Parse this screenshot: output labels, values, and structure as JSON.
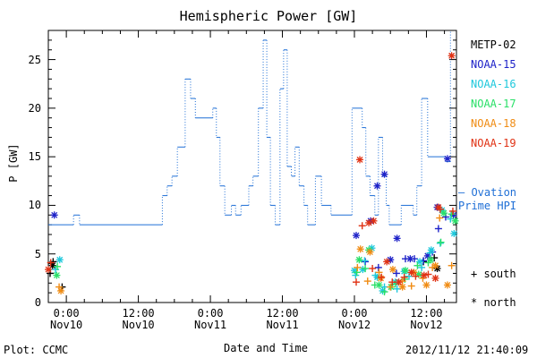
{
  "chart_data": {
    "type": "scatter",
    "title": "Hemispheric Power [GW]",
    "ylabel": "P [GW]",
    "xlabel": "Date and Time",
    "ylim": [
      0,
      28
    ],
    "xlim_hours": [
      -3,
      65
    ],
    "grid": false,
    "yticks": [
      0,
      5,
      10,
      15,
      20,
      25
    ],
    "xticks": [
      {
        "top": "0:00",
        "bottom": "Nov10",
        "h": 0
      },
      {
        "top": "12:00",
        "bottom": "Nov10",
        "h": 12
      },
      {
        "top": "0:00",
        "bottom": "Nov11",
        "h": 24
      },
      {
        "top": "12:00",
        "bottom": "Nov11",
        "h": 36
      },
      {
        "top": "0:00",
        "bottom": "Nov12",
        "h": 48
      },
      {
        "top": "12:00",
        "bottom": "Nov12",
        "h": 60
      }
    ],
    "ovation": {
      "name": "— Ovation Prime HPI",
      "color": "#1f6fd6",
      "points": [
        [
          -3,
          8
        ],
        [
          1.2,
          8
        ],
        [
          1.2,
          9
        ],
        [
          2.2,
          9
        ],
        [
          2.2,
          8
        ],
        [
          16,
          8
        ],
        [
          16,
          11
        ],
        [
          16.8,
          11
        ],
        [
          16.8,
          12
        ],
        [
          17.6,
          12
        ],
        [
          17.6,
          13
        ],
        [
          18.5,
          13
        ],
        [
          18.5,
          16
        ],
        [
          19.8,
          16
        ],
        [
          19.8,
          23
        ],
        [
          20.7,
          23
        ],
        [
          20.7,
          21
        ],
        [
          21.5,
          21
        ],
        [
          21.5,
          19
        ],
        [
          24.4,
          19
        ],
        [
          24.4,
          20
        ],
        [
          25,
          20
        ],
        [
          25,
          17
        ],
        [
          25.6,
          17
        ],
        [
          25.6,
          12
        ],
        [
          26.4,
          12
        ],
        [
          26.4,
          9
        ],
        [
          27.5,
          9
        ],
        [
          27.5,
          10
        ],
        [
          28.2,
          10
        ],
        [
          28.2,
          9
        ],
        [
          29.1,
          9
        ],
        [
          29.1,
          10
        ],
        [
          30.4,
          10
        ],
        [
          30.4,
          12
        ],
        [
          31.1,
          12
        ],
        [
          31.1,
          13
        ],
        [
          32,
          13
        ],
        [
          32,
          20
        ],
        [
          32.8,
          20
        ],
        [
          32.8,
          27
        ],
        [
          33.4,
          27
        ],
        [
          33.4,
          17
        ],
        [
          34,
          17
        ],
        [
          34,
          10
        ],
        [
          34.8,
          10
        ],
        [
          34.8,
          8
        ],
        [
          35.6,
          8
        ],
        [
          35.6,
          22
        ],
        [
          36.2,
          22
        ],
        [
          36.2,
          26
        ],
        [
          36.8,
          26
        ],
        [
          36.8,
          14
        ],
        [
          37.5,
          14
        ],
        [
          37.5,
          13
        ],
        [
          38.1,
          13
        ],
        [
          38.1,
          16
        ],
        [
          38.8,
          16
        ],
        [
          38.8,
          12
        ],
        [
          39.6,
          12
        ],
        [
          39.6,
          10
        ],
        [
          40.2,
          10
        ],
        [
          40.2,
          8
        ],
        [
          41.5,
          8
        ],
        [
          41.5,
          13
        ],
        [
          42.5,
          13
        ],
        [
          42.5,
          10
        ],
        [
          44.1,
          10
        ],
        [
          44.1,
          9
        ],
        [
          47.6,
          9
        ],
        [
          47.6,
          20
        ],
        [
          49.3,
          20
        ],
        [
          49.3,
          18
        ],
        [
          49.9,
          18
        ],
        [
          49.9,
          13
        ],
        [
          50.6,
          13
        ],
        [
          50.6,
          11
        ],
        [
          51.4,
          11
        ],
        [
          51.4,
          9
        ],
        [
          52,
          9
        ],
        [
          52,
          17
        ],
        [
          52.7,
          17
        ],
        [
          52.7,
          13
        ],
        [
          53.3,
          13
        ],
        [
          53.3,
          10
        ],
        [
          53.8,
          10
        ],
        [
          53.8,
          8
        ],
        [
          55.8,
          8
        ],
        [
          55.8,
          10
        ],
        [
          57.8,
          10
        ],
        [
          57.8,
          9
        ],
        [
          58.4,
          9
        ],
        [
          58.4,
          12
        ],
        [
          59.2,
          12
        ],
        [
          59.2,
          21
        ],
        [
          60.2,
          21
        ],
        [
          60.2,
          15
        ],
        [
          63.2,
          15
        ],
        [
          63.2,
          14.5
        ],
        [
          64,
          14.5
        ],
        [
          64,
          28
        ]
      ]
    },
    "series": [
      {
        "name": "METP-02",
        "color": "#000000",
        "south": [
          [
            -2.7,
            3
          ],
          [
            -2.2,
            4.2
          ],
          [
            -0.7,
            1.6
          ],
          [
            59.5,
            4.2
          ],
          [
            61.3,
            4.6
          ]
        ],
        "north": [
          [
            -2.3,
            3.8
          ],
          [
            61.8,
            3.5
          ]
        ]
      },
      {
        "name": "NOAA-15",
        "color": "#1e22c8",
        "south": [
          [
            49.8,
            4.2
          ],
          [
            52,
            3.6
          ],
          [
            55,
            3
          ],
          [
            56.5,
            4.5
          ],
          [
            58,
            4.5
          ],
          [
            59.5,
            4.3
          ],
          [
            61,
            5.2
          ],
          [
            62,
            7.6
          ],
          [
            63.2,
            8.8
          ]
        ],
        "north": [
          [
            -2,
            9
          ],
          [
            48.3,
            6.9
          ],
          [
            50.7,
            8.4
          ],
          [
            51.8,
            12
          ],
          [
            53,
            13.2
          ],
          [
            54,
            4.4
          ],
          [
            55.1,
            6.6
          ],
          [
            57.3,
            4.5
          ],
          [
            60.2,
            4.8
          ],
          [
            61.8,
            9.8
          ],
          [
            63.5,
            14.8
          ],
          [
            64.5,
            9
          ]
        ]
      },
      {
        "name": "NOAA-16",
        "color": "#1ec8dc",
        "south": [
          [
            -1.8,
            3.4
          ],
          [
            48.2,
            2.8
          ],
          [
            49.7,
            4.3
          ],
          [
            51.5,
            2.8
          ],
          [
            53,
            1.6
          ],
          [
            55.1,
            1.4
          ],
          [
            57.1,
            2.7
          ],
          [
            59.2,
            3.6
          ],
          [
            60.6,
            5.1
          ],
          [
            62.3,
            6.1
          ],
          [
            64,
            8.6
          ]
        ],
        "north": [
          [
            -1.1,
            4.4
          ],
          [
            48,
            3.3
          ],
          [
            49.4,
            3.4
          ],
          [
            50.9,
            5.6
          ],
          [
            51.8,
            2.6
          ],
          [
            52.7,
            1.2
          ],
          [
            54.8,
            2.1
          ],
          [
            56.3,
            3.2
          ],
          [
            58.9,
            4.2
          ],
          [
            60.8,
            5.4
          ],
          [
            62.6,
            9.5
          ],
          [
            64.6,
            7.1
          ]
        ]
      },
      {
        "name": "NOAA-17",
        "color": "#2ae068",
        "south": [
          [
            -1.5,
            3.7
          ],
          [
            48.4,
            3.1
          ],
          [
            49.8,
            3.5
          ],
          [
            51.4,
            1.8
          ],
          [
            53,
            1.1
          ],
          [
            54.8,
            1.9
          ],
          [
            56.4,
            2.4
          ],
          [
            58.5,
            3.8
          ],
          [
            60.3,
            4.1
          ],
          [
            62.4,
            6.2
          ],
          [
            64.2,
            9.1
          ]
        ],
        "north": [
          [
            -1.6,
            2.8
          ],
          [
            48.8,
            4.4
          ],
          [
            50.4,
            5.4
          ],
          [
            52.1,
            1.8
          ],
          [
            54.1,
            1.6
          ],
          [
            56.5,
            3.3
          ],
          [
            58.7,
            2.9
          ],
          [
            60.7,
            4.4
          ],
          [
            62.9,
            9.2
          ],
          [
            64.8,
            8.4
          ]
        ]
      },
      {
        "name": "NOAA-18",
        "color": "#f08c14",
        "south": [
          [
            -1.2,
            1.6
          ],
          [
            48.5,
            3.6
          ],
          [
            50.2,
            2.2
          ],
          [
            52.1,
            3.1
          ],
          [
            54,
            1.6
          ],
          [
            56,
            2.2
          ],
          [
            57.5,
            1.7
          ],
          [
            59.4,
            2.5
          ],
          [
            61,
            3.6
          ],
          [
            62.2,
            8.7
          ],
          [
            64.2,
            3.8
          ]
        ],
        "north": [
          [
            -0.9,
            1.2
          ],
          [
            49,
            5.5
          ],
          [
            50.6,
            5.2
          ],
          [
            52.4,
            2.5
          ],
          [
            54.4,
            3.4
          ],
          [
            56,
            1.6
          ],
          [
            57.9,
            3.1
          ],
          [
            60,
            1.8
          ],
          [
            61.5,
            3.8
          ],
          [
            63.5,
            1.8
          ]
        ]
      },
      {
        "name": "NOAA-19",
        "color": "#e03214",
        "south": [
          [
            -2.6,
            4.1
          ],
          [
            48.3,
            2.1
          ],
          [
            49.3,
            7.9
          ],
          [
            51,
            3.5
          ],
          [
            52.5,
            2.6
          ],
          [
            54.3,
            2.1
          ],
          [
            56.3,
            2.6
          ],
          [
            58.2,
            2.7
          ],
          [
            60.3,
            2.9
          ],
          [
            62.3,
            9.6
          ],
          [
            64.4,
            9.4
          ]
        ],
        "north": [
          [
            -3,
            3.4
          ],
          [
            48.9,
            14.7
          ],
          [
            50.4,
            8.2
          ],
          [
            51.2,
            8.4
          ],
          [
            53.4,
            4.2
          ],
          [
            55.4,
            2.1
          ],
          [
            57.5,
            3.1
          ],
          [
            59.6,
            2.8
          ],
          [
            61.5,
            2.5
          ],
          [
            62,
            9.8
          ],
          [
            64.2,
            25.4
          ]
        ]
      }
    ]
  },
  "legend": {
    "marker_south": "+ south",
    "marker_north": "* north"
  },
  "footer": {
    "plot_credit": "Plot: CCMC",
    "timestamp": "2012/11/12 21:40:09"
  }
}
